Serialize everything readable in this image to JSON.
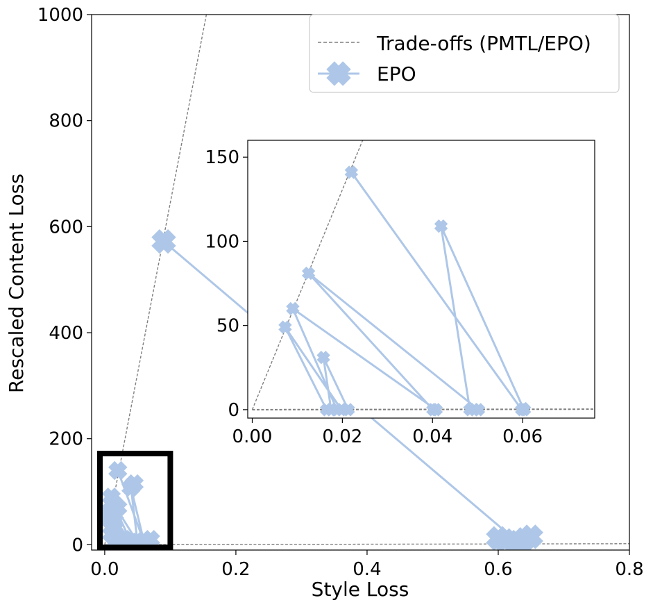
{
  "chart_data": [
    {
      "type": "line",
      "xlabel": "Style Loss",
      "ylabel": "Rescaled Content Loss",
      "xlim": [
        -0.02,
        0.8
      ],
      "ylim": [
        -10,
        1000
      ],
      "xticks": [
        "0.0",
        "0.2",
        "0.4",
        "0.6",
        "0.8"
      ],
      "yticks": [
        "0",
        "200",
        "400",
        "600",
        "800",
        "1000"
      ],
      "grid": false,
      "legend": {
        "placement": "top-right",
        "entries": [
          "Trade-offs (PMTL/EPO)",
          "EPO"
        ]
      },
      "tradeoff_lines": [
        {
          "x": [
            0,
            0.155
          ],
          "y": [
            0,
            1000
          ]
        },
        {
          "x": [
            0,
            0.8
          ],
          "y": [
            0,
            2
          ]
        }
      ],
      "series": [
        {
          "name": "EPO",
          "color": "#aec7e8",
          "marker": "X",
          "path": [
            {
              "x": 0.09,
              "y": 572
            },
            {
              "x": 0.63,
              "y": 5
            }
          ],
          "cluster_path": [
            {
              "x": 0.02,
              "y": 140
            },
            {
              "x": 0.06,
              "y": 5
            },
            {
              "x": 0.04,
              "y": 108
            },
            {
              "x": 0.05,
              "y": 5
            },
            {
              "x": 0.012,
              "y": 80
            },
            {
              "x": 0.04,
              "y": 5
            },
            {
              "x": 0.009,
              "y": 60
            },
            {
              "x": 0.02,
              "y": 5
            },
            {
              "x": 0.007,
              "y": 48
            },
            {
              "x": 0.016,
              "y": 5
            },
            {
              "x": 0.015,
              "y": 31
            },
            {
              "x": 0.021,
              "y": 5
            }
          ],
          "extra_points": [
            {
              "x": 0.61,
              "y": 8
            },
            {
              "x": 0.64,
              "y": 10
            },
            {
              "x": 0.65,
              "y": 15
            },
            {
              "x": 0.6,
              "y": 12
            },
            {
              "x": 0.005,
              "y": 60
            },
            {
              "x": 0.01,
              "y": 90
            },
            {
              "x": 0.02,
              "y": 70
            },
            {
              "x": 0.015,
              "y": 45
            },
            {
              "x": 0.01,
              "y": 20
            },
            {
              "x": 0.03,
              "y": 10
            },
            {
              "x": 0.045,
              "y": 115
            },
            {
              "x": 0.06,
              "y": 8
            },
            {
              "x": 0.07,
              "y": 10
            }
          ]
        }
      ],
      "highlight_box": {
        "x": [
          -0.02,
          0.1
        ],
        "y": [
          -5,
          172
        ]
      }
    },
    {
      "type": "line",
      "role": "inset",
      "xlim": [
        -0.001,
        0.076
      ],
      "ylim": [
        -5,
        160
      ],
      "xticks": [
        "0.00",
        "0.02",
        "0.04",
        "0.06"
      ],
      "yticks": [
        "0",
        "50",
        "100",
        "150"
      ],
      "tradeoff_lines": [
        {
          "x": [
            0,
            0.0245
          ],
          "y": [
            0,
            160
          ]
        },
        {
          "x": [
            0,
            0.076
          ],
          "y": [
            0,
            0.3
          ]
        }
      ],
      "series": [
        {
          "name": "EPO",
          "color": "#aec7e8",
          "marker": "X",
          "path": [
            {
              "x": 0.022,
              "y": 141
            },
            {
              "x": 0.0598,
              "y": 0
            },
            {
              "x": 0.0604,
              "y": 0
            },
            {
              "x": 0.0602,
              "y": 0.6
            },
            {
              "x": 0.0419,
              "y": 109
            },
            {
              "x": 0.0483,
              "y": 0
            },
            {
              "x": 0.0493,
              "y": 0
            },
            {
              "x": 0.0502,
              "y": 0
            },
            {
              "x": 0.0125,
              "y": 81
            },
            {
              "x": 0.0401,
              "y": 0
            },
            {
              "x": 0.0408,
              "y": 0
            },
            {
              "x": 0.009,
              "y": 60
            },
            {
              "x": 0.0188,
              "y": 0
            },
            {
              "x": 0.0198,
              "y": 0
            },
            {
              "x": 0.0073,
              "y": 49
            },
            {
              "x": 0.0165,
              "y": 0
            },
            {
              "x": 0.0175,
              "y": 0
            },
            {
              "x": 0.0158,
              "y": 31
            },
            {
              "x": 0.0213,
              "y": 0
            }
          ],
          "points": [
            {
              "x": 0.022,
              "y": 141
            },
            {
              "x": 0.0419,
              "y": 109
            },
            {
              "x": 0.0125,
              "y": 81
            },
            {
              "x": 0.009,
              "y": 60
            },
            {
              "x": 0.0073,
              "y": 49
            },
            {
              "x": 0.0158,
              "y": 31
            },
            {
              "x": 0.0598,
              "y": 0
            },
            {
              "x": 0.0604,
              "y": 0
            },
            {
              "x": 0.0602,
              "y": 0.6
            },
            {
              "x": 0.0483,
              "y": 0
            },
            {
              "x": 0.0493,
              "y": 0
            },
            {
              "x": 0.0502,
              "y": 0
            },
            {
              "x": 0.0401,
              "y": 0
            },
            {
              "x": 0.0408,
              "y": 0
            },
            {
              "x": 0.0188,
              "y": 0
            },
            {
              "x": 0.0198,
              "y": 0
            },
            {
              "x": 0.0165,
              "y": 0
            },
            {
              "x": 0.0175,
              "y": 0
            },
            {
              "x": 0.0213,
              "y": 0
            }
          ]
        }
      ]
    }
  ]
}
